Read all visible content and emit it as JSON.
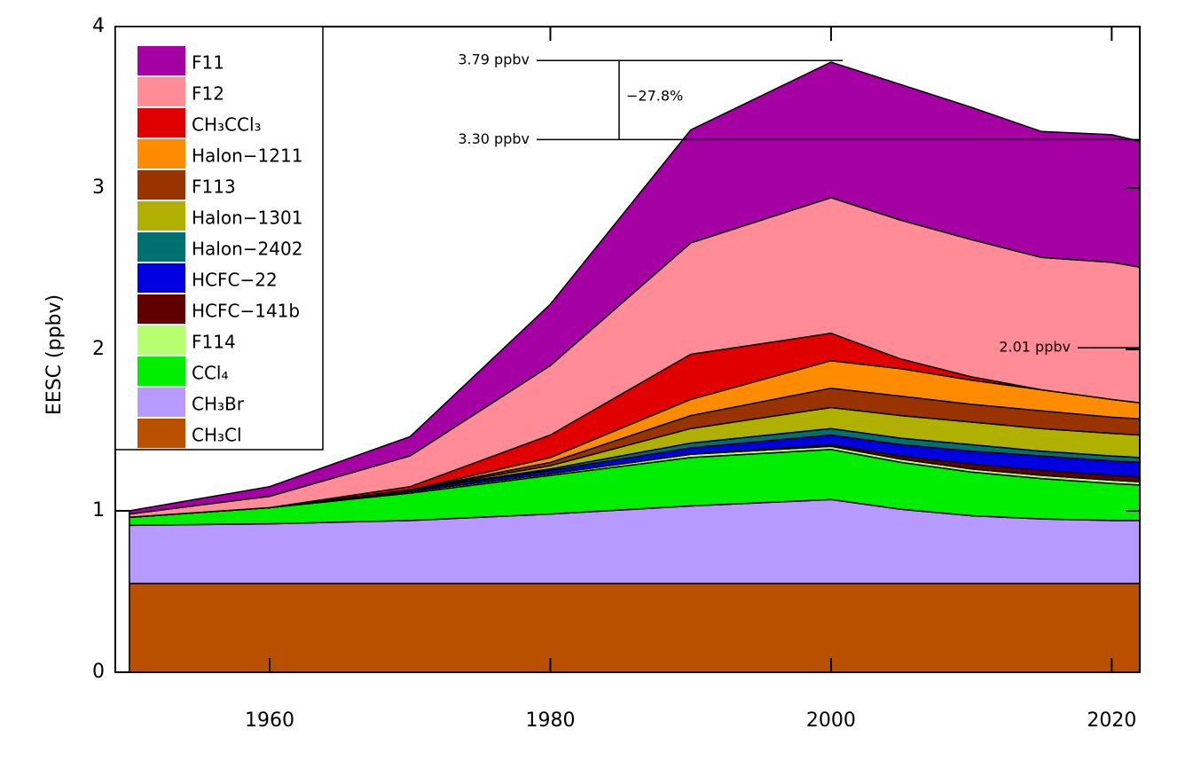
{
  "chart_data": {
    "type": "stacked_area",
    "y_label": "EESC (ppbv)",
    "x": [
      1950,
      1960,
      1970,
      1980,
      1990,
      2000,
      2005,
      2010,
      2015,
      2020,
      2022
    ],
    "xlim": [
      1949,
      2022
    ],
    "xticks": [
      1960,
      1980,
      2000,
      2020
    ],
    "ylim": [
      0,
      4
    ],
    "yticks": [
      0,
      1,
      2,
      3,
      4
    ],
    "series": [
      {
        "name": "F11",
        "color": "#a400a4",
        "values": [
          0.02,
          0.06,
          0.12,
          0.38,
          0.7,
          0.84,
          0.84,
          0.82,
          0.78,
          0.79,
          0.78
        ]
      },
      {
        "name": "F12",
        "color": "#ff8c96",
        "values": [
          0.02,
          0.07,
          0.19,
          0.43,
          0.69,
          0.84,
          0.86,
          0.85,
          0.82,
          0.85,
          0.84
        ]
      },
      {
        "name": "CH₃CCl₃",
        "color": "#e00000",
        "values": [
          0,
          0,
          0.02,
          0.14,
          0.28,
          0.17,
          0.06,
          0.02,
          0,
          0,
          0
        ]
      },
      {
        "name": "Halon−1211",
        "color": "#ff8c00",
        "values": [
          0,
          0,
          0,
          0.03,
          0.1,
          0.17,
          0.17,
          0.15,
          0.13,
          0.11,
          0.1
        ]
      },
      {
        "name": "F113",
        "color": "#993300",
        "values": [
          0,
          0,
          0,
          0.02,
          0.08,
          0.12,
          0.12,
          0.11,
          0.11,
          0.1,
          0.1
        ]
      },
      {
        "name": "Halon−1301",
        "color": "#b0b000",
        "values": [
          0,
          0,
          0,
          0.02,
          0.09,
          0.13,
          0.14,
          0.14,
          0.14,
          0.14,
          0.14
        ]
      },
      {
        "name": "Halon−2402",
        "color": "#007070",
        "values": [
          0,
          0,
          0,
          0.01,
          0.03,
          0.04,
          0.04,
          0.04,
          0.03,
          0.03,
          0.03
        ]
      },
      {
        "name": "HCFC−22",
        "color": "#0000e0",
        "values": [
          0,
          0,
          0.01,
          0.02,
          0.04,
          0.06,
          0.07,
          0.08,
          0.09,
          0.09,
          0.09
        ]
      },
      {
        "name": "HCFC−141b",
        "color": "#600000",
        "values": [
          0,
          0,
          0,
          0,
          0,
          0.01,
          0.02,
          0.03,
          0.03,
          0.03,
          0.03
        ]
      },
      {
        "name": "F114",
        "color": "#b8ff70",
        "values": [
          0,
          0,
          0.01,
          0.01,
          0.02,
          0.02,
          0.02,
          0.02,
          0.02,
          0.02,
          0.02
        ]
      },
      {
        "name": "CCl₄",
        "color": "#00ee00",
        "values": [
          0.05,
          0.1,
          0.17,
          0.24,
          0.3,
          0.31,
          0.29,
          0.27,
          0.25,
          0.23,
          0.22
        ]
      },
      {
        "name": "CH₃Br",
        "color": "#b79aff",
        "values": [
          0.36,
          0.37,
          0.39,
          0.43,
          0.48,
          0.52,
          0.46,
          0.42,
          0.4,
          0.39,
          0.39
        ]
      },
      {
        "name": "CH₃Cl",
        "color": "#b85000",
        "values": [
          0.55,
          0.55,
          0.55,
          0.55,
          0.55,
          0.55,
          0.55,
          0.55,
          0.55,
          0.55,
          0.55
        ]
      }
    ],
    "annotations": [
      {
        "label": "3.79 ppbv",
        "value": 3.79
      },
      {
        "label": "3.30 ppbv",
        "value": 3.3
      },
      {
        "label": "2.01 ppbv",
        "value": 2.01
      }
    ],
    "change_label": "−27.8%"
  }
}
